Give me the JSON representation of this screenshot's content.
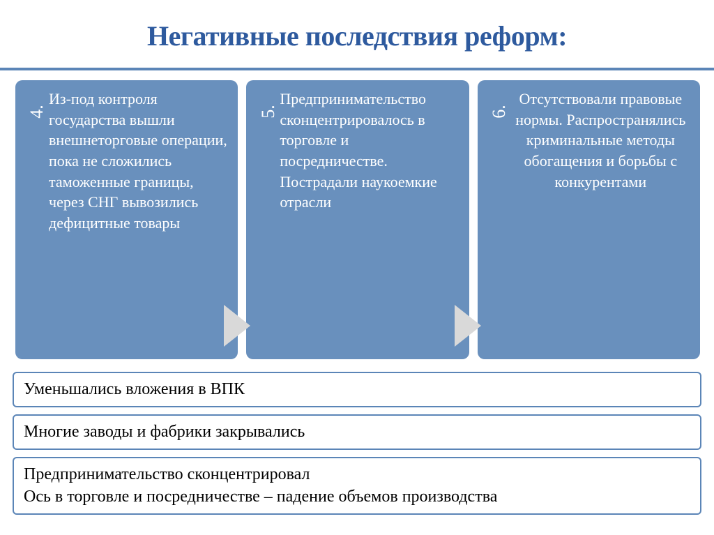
{
  "title": {
    "text": "Негативные последствия реформ:",
    "color": "#2e5a9e",
    "fontsize": 40
  },
  "bar": {
    "color": "#5b85b7",
    "height": 4
  },
  "cards": {
    "bg": "#6990bd",
    "text_color": "#ffffff",
    "fontsize": 22,
    "num_fontsize": 26,
    "arrow_color": "#d9d9d9",
    "items": [
      {
        "num": "4.",
        "text": "Из-под контроля государства вышли внешнеторговые операции, пока не сложились таможенные границы, через СНГ вывозились дефицитные товары",
        "align": "left"
      },
      {
        "num": "5.",
        "text": "Предпринимательство сконцентрировалось в торговле и посредничестве. Пострадали наукоемкие отрасли",
        "align": "left"
      },
      {
        "num": "6.",
        "text": "Отсутствовали правовые нормы. Распространялись криминальные методы обогащения и борьбы с конкурентами",
        "align": "center"
      }
    ]
  },
  "boxes": {
    "border_color": "#5b85b7",
    "border_width": 2,
    "bg": "#ffffff",
    "text_color": "#000000",
    "fontsize": 24,
    "items": [
      "Уменьшались вложения в ВПК",
      "Многие заводы и фабрики закрывались",
      "Предпринимательство сконцентрировал\nОсь в торговле и посредничестве – падение объемов производства"
    ]
  }
}
